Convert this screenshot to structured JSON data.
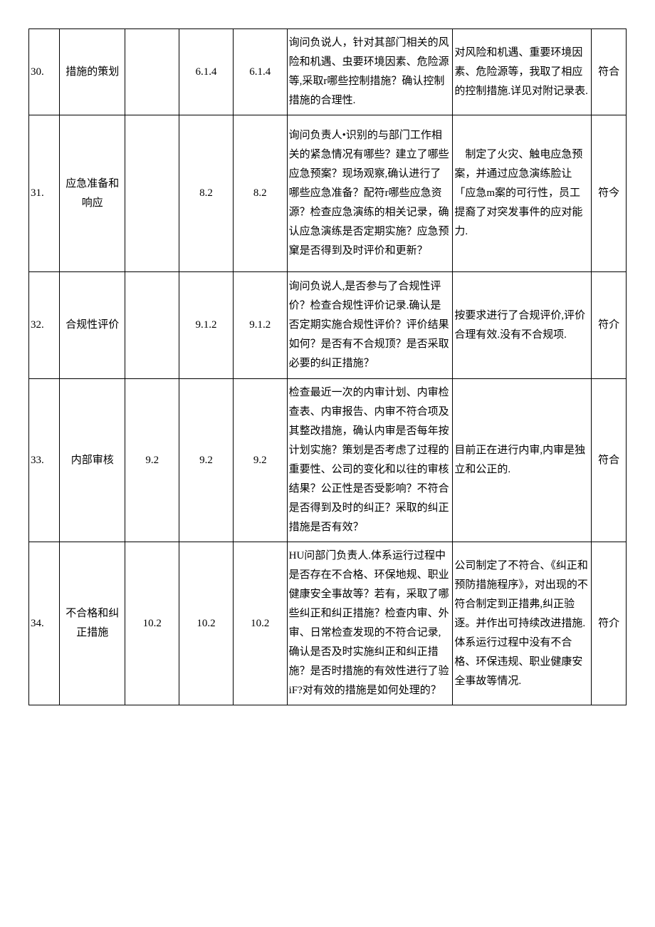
{
  "table": {
    "columns": {
      "index_width": 40,
      "name_width": 85,
      "code1_width": 70,
      "code2_width": 70,
      "code3_width": 70,
      "desc_width": 215,
      "result_width": 180,
      "status_width": 45
    },
    "styling": {
      "border_color": "#000000",
      "text_color": "#000000",
      "background_color": "#ffffff",
      "font_size": 15,
      "line_height": 1.8,
      "font_family": "SimSun"
    },
    "rows": [
      {
        "index": "30.",
        "name": "措施的策划",
        "code1": "",
        "code2": "6.1.4",
        "code3": "6.1.4",
        "desc": "询问负说人，针对其部门相关的风险和机遇、虫要环境因素、危险源等,采取r哪些控制措施？确认控制措施的合理性.",
        "result": "对风险和机遇、重要环境因素、危险源等，我取了相应的控制措施.详见对附记录表.",
        "status": "符合"
      },
      {
        "index": "31.",
        "name": "应急准备和响应",
        "code1": "",
        "code2": "8.2",
        "code3": "8.2",
        "desc": "询问负责人•识别的与部门工作相关的紧急情况有哪些？建立了哪些应急预案？现场观察,确认进行了哪些应急准备？配符r哪些应急资源？检查应急演练的相关记录，确认应急演练是否定期实施？应急预窠是否得到及时评价和更新？",
        "result": "　制定了火灾、触电应急预案，并通过应急演练脸让「应急m案的可行性，员工提裔了对突发事件的应对能力.",
        "status": "符今"
      },
      {
        "index": "32.",
        "name": "合规性评价",
        "code1": "",
        "code2": "9.1.2",
        "code3": "9.1.2",
        "desc": "询问负说人,是否参与了合规性评价？检查合规性评价记录.确认是否定期实施合规性评价？评价结果如何？是否有不合规顶？是否采取必要的纠正措施？",
        "result": "按要求进行了合规评价,评价合理有效.没有不合规项.",
        "status": "符介"
      },
      {
        "index": "33.",
        "name": "内部审核",
        "code1": "9.2",
        "code2": "9.2",
        "code3": "9.2",
        "desc": "检查最近一次的内审计划、内审检查表、内审报告、内审不符合项及其整改措施，确认内审是否每年按计划实施？策划是否考虑了过程的重要性、公司的变化和以往的审核结果？公正性是否受影响？不符合是否得到及时的纠正？采取的纠正措施是否有效？",
        "result": "目前正在进行内审,内审是独立和公正的.",
        "status": "符合"
      },
      {
        "index": "34.",
        "name": "不合格和纠正措施",
        "code1": "10.2",
        "code2": "10.2",
        "code3": "10.2",
        "desc": "HU问部门负责人.体系运行过程中是否存在不合格、环保地规、职业健康安全事故等？若有，采取了哪些纠正和纠正措施？检查内审、外审、日常检查发现的不符合记录,确认是否及时实施纠正和纠正措施？是否时措施的有效性进行了验iF?对有效的措施是如何处理的？",
        "result": "公司制定了不符合、《纠正和预防措施程序》，对出现的不符合制定到正措弗,纠正验逐。并作出可持续改进措施.体系运行过程中没有不合格、环保违规、职业健康安全事故等情况.",
        "status": "符介"
      }
    ]
  }
}
